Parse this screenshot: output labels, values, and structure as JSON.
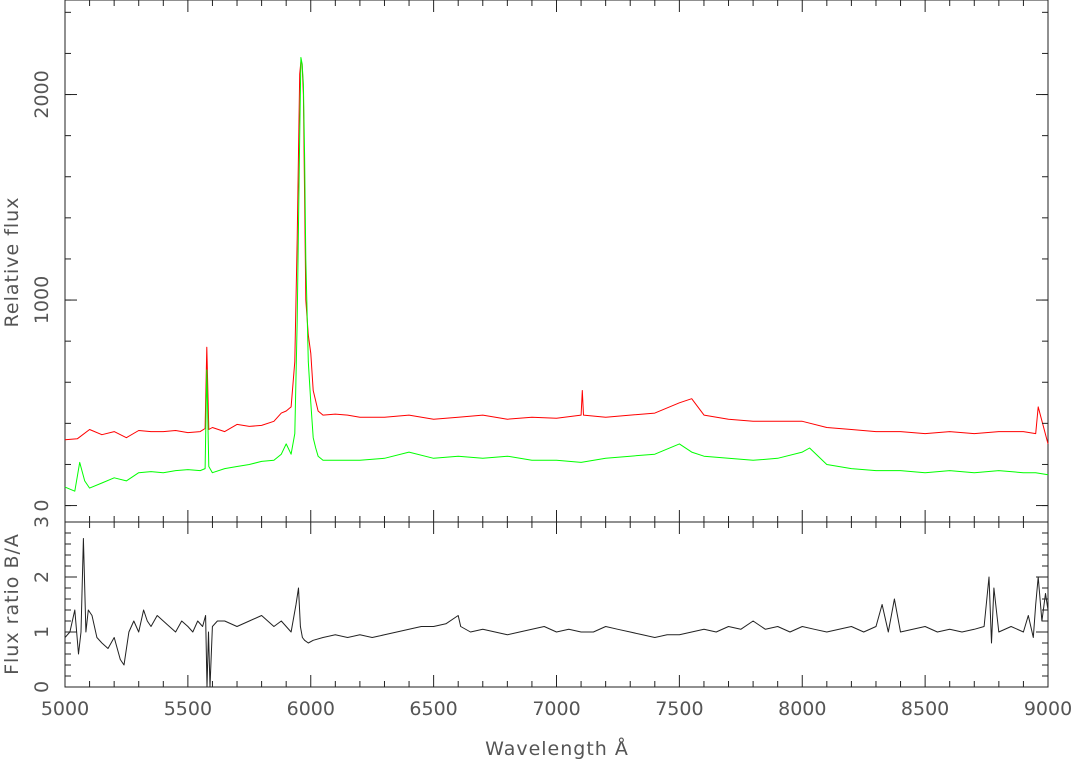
{
  "chart_data": [
    {
      "panel": "top",
      "type": "line",
      "ylabel": "Relative flux",
      "xlim": [
        5000,
        9000
      ],
      "ylim": [
        -80,
        2460
      ],
      "grid": false,
      "yticks": [
        0,
        1000,
        2000
      ],
      "series": [
        {
          "color": "#ff0000",
          "x": [
            5000,
            5050,
            5100,
            5150,
            5200,
            5250,
            5300,
            5350,
            5400,
            5450,
            5500,
            5550,
            5570,
            5577,
            5585,
            5600,
            5650,
            5700,
            5750,
            5800,
            5850,
            5880,
            5900,
            5920,
            5935,
            5945,
            5955,
            5960,
            5965,
            5970,
            5975,
            5980,
            5990,
            6000,
            6010,
            6030,
            6050,
            6100,
            6150,
            6200,
            6300,
            6400,
            6500,
            6600,
            6700,
            6800,
            6900,
            7000,
            7100,
            7105,
            7110,
            7200,
            7300,
            7400,
            7500,
            7550,
            7600,
            7700,
            7800,
            7900,
            8000,
            8100,
            8200,
            8300,
            8400,
            8500,
            8600,
            8700,
            8800,
            8900,
            8950,
            8960,
            9000
          ],
          "y": [
            320,
            325,
            370,
            345,
            360,
            330,
            365,
            360,
            360,
            365,
            355,
            360,
            375,
            770,
            370,
            380,
            360,
            395,
            385,
            390,
            410,
            450,
            460,
            480,
            700,
            1300,
            2100,
            2160,
            2150,
            2000,
            1500,
            1000,
            830,
            740,
            560,
            460,
            440,
            445,
            440,
            430,
            430,
            440,
            420,
            430,
            440,
            420,
            430,
            425,
            440,
            560,
            440,
            430,
            440,
            450,
            500,
            520,
            440,
            420,
            410,
            410,
            410,
            380,
            370,
            360,
            360,
            350,
            360,
            350,
            360,
            360,
            350,
            480,
            300
          ]
        },
        {
          "color": "#00ff00",
          "x": [
            5000,
            5040,
            5060,
            5080,
            5100,
            5150,
            5200,
            5250,
            5300,
            5350,
            5400,
            5450,
            5500,
            5550,
            5570,
            5577,
            5585,
            5600,
            5650,
            5700,
            5750,
            5800,
            5850,
            5880,
            5900,
            5920,
            5935,
            5945,
            5955,
            5960,
            5965,
            5970,
            5975,
            5980,
            5990,
            6000,
            6010,
            6020,
            6030,
            6050,
            6100,
            6200,
            6300,
            6400,
            6500,
            6600,
            6700,
            6800,
            6900,
            7000,
            7100,
            7200,
            7300,
            7400,
            7500,
            7550,
            7600,
            7700,
            7800,
            7900,
            8000,
            8030,
            8100,
            8200,
            8300,
            8400,
            8500,
            8600,
            8700,
            8800,
            8900,
            8950,
            9000
          ],
          "y": [
            90,
            70,
            210,
            120,
            85,
            110,
            135,
            120,
            160,
            165,
            160,
            170,
            175,
            170,
            180,
            660,
            190,
            160,
            180,
            190,
            200,
            215,
            220,
            250,
            300,
            250,
            350,
            900,
            1800,
            2180,
            2150,
            2050,
            1700,
            1200,
            700,
            500,
            330,
            280,
            240,
            220,
            220,
            220,
            230,
            260,
            230,
            240,
            230,
            240,
            220,
            220,
            210,
            230,
            240,
            250,
            300,
            260,
            240,
            230,
            220,
            230,
            260,
            280,
            200,
            180,
            170,
            170,
            160,
            170,
            160,
            170,
            160,
            160,
            150
          ]
        }
      ]
    },
    {
      "panel": "bottom",
      "type": "line",
      "xlabel": "Wavelength Å",
      "ylabel": "Flux ratio B/A",
      "xlim": [
        5000,
        9000
      ],
      "ylim": [
        0,
        3
      ],
      "grid": false,
      "xticks": [
        5000,
        5500,
        6000,
        6500,
        7000,
        7500,
        8000,
        8500,
        9000
      ],
      "yticks": [
        0,
        1,
        2,
        3
      ],
      "series": [
        {
          "color": "#222222",
          "x": [
            5000,
            5020,
            5040,
            5055,
            5065,
            5075,
            5085,
            5095,
            5110,
            5130,
            5150,
            5175,
            5200,
            5225,
            5240,
            5260,
            5280,
            5300,
            5320,
            5335,
            5350,
            5375,
            5400,
            5425,
            5450,
            5475,
            5500,
            5520,
            5540,
            5560,
            5572,
            5578,
            5584,
            5590,
            5600,
            5620,
            5650,
            5700,
            5750,
            5800,
            5850,
            5880,
            5900,
            5920,
            5940,
            5950,
            5958,
            5966,
            5975,
            5990,
            6010,
            6050,
            6100,
            6150,
            6200,
            6250,
            6300,
            6350,
            6400,
            6450,
            6500,
            6550,
            6600,
            6610,
            6650,
            6700,
            6750,
            6800,
            6850,
            6900,
            6950,
            7000,
            7050,
            7100,
            7150,
            7200,
            7250,
            7300,
            7350,
            7400,
            7450,
            7500,
            7550,
            7600,
            7650,
            7700,
            7750,
            7800,
            7850,
            7900,
            7950,
            8000,
            8050,
            8100,
            8150,
            8200,
            8250,
            8300,
            8325,
            8350,
            8375,
            8400,
            8450,
            8500,
            8550,
            8600,
            8650,
            8700,
            8740,
            8760,
            8770,
            8780,
            8800,
            8850,
            8900,
            8920,
            8940,
            8950,
            8960,
            8975,
            8990,
            9000
          ],
          "y": [
            0.9,
            1.0,
            1.4,
            0.6,
            1.0,
            2.7,
            1.0,
            1.4,
            1.3,
            0.9,
            0.8,
            0.7,
            0.9,
            0.5,
            0.4,
            1.0,
            1.2,
            1.0,
            1.4,
            1.2,
            1.1,
            1.3,
            1.2,
            1.1,
            1.0,
            1.2,
            1.1,
            1.0,
            1.2,
            1.1,
            1.3,
            0.0,
            1.0,
            0.0,
            1.1,
            1.2,
            1.2,
            1.1,
            1.2,
            1.3,
            1.1,
            1.2,
            1.1,
            1.0,
            1.5,
            1.8,
            1.1,
            0.9,
            0.85,
            0.8,
            0.85,
            0.9,
            0.95,
            0.9,
            0.95,
            0.9,
            0.95,
            1.0,
            1.05,
            1.1,
            1.1,
            1.15,
            1.3,
            1.1,
            1.0,
            1.05,
            1.0,
            0.95,
            1.0,
            1.05,
            1.1,
            1.0,
            1.05,
            1.0,
            1.0,
            1.1,
            1.05,
            1.0,
            0.95,
            0.9,
            0.95,
            0.95,
            1.0,
            1.05,
            1.0,
            1.1,
            1.05,
            1.2,
            1.05,
            1.1,
            1.0,
            1.1,
            1.05,
            1.0,
            1.05,
            1.1,
            1.0,
            1.1,
            1.5,
            1.0,
            1.6,
            1.0,
            1.05,
            1.1,
            1.0,
            1.05,
            1.0,
            1.05,
            1.1,
            2.0,
            0.8,
            1.8,
            1.0,
            1.1,
            1.0,
            1.3,
            0.9,
            1.5,
            2.0,
            1.2,
            1.7,
            1.4
          ]
        }
      ]
    }
  ]
}
